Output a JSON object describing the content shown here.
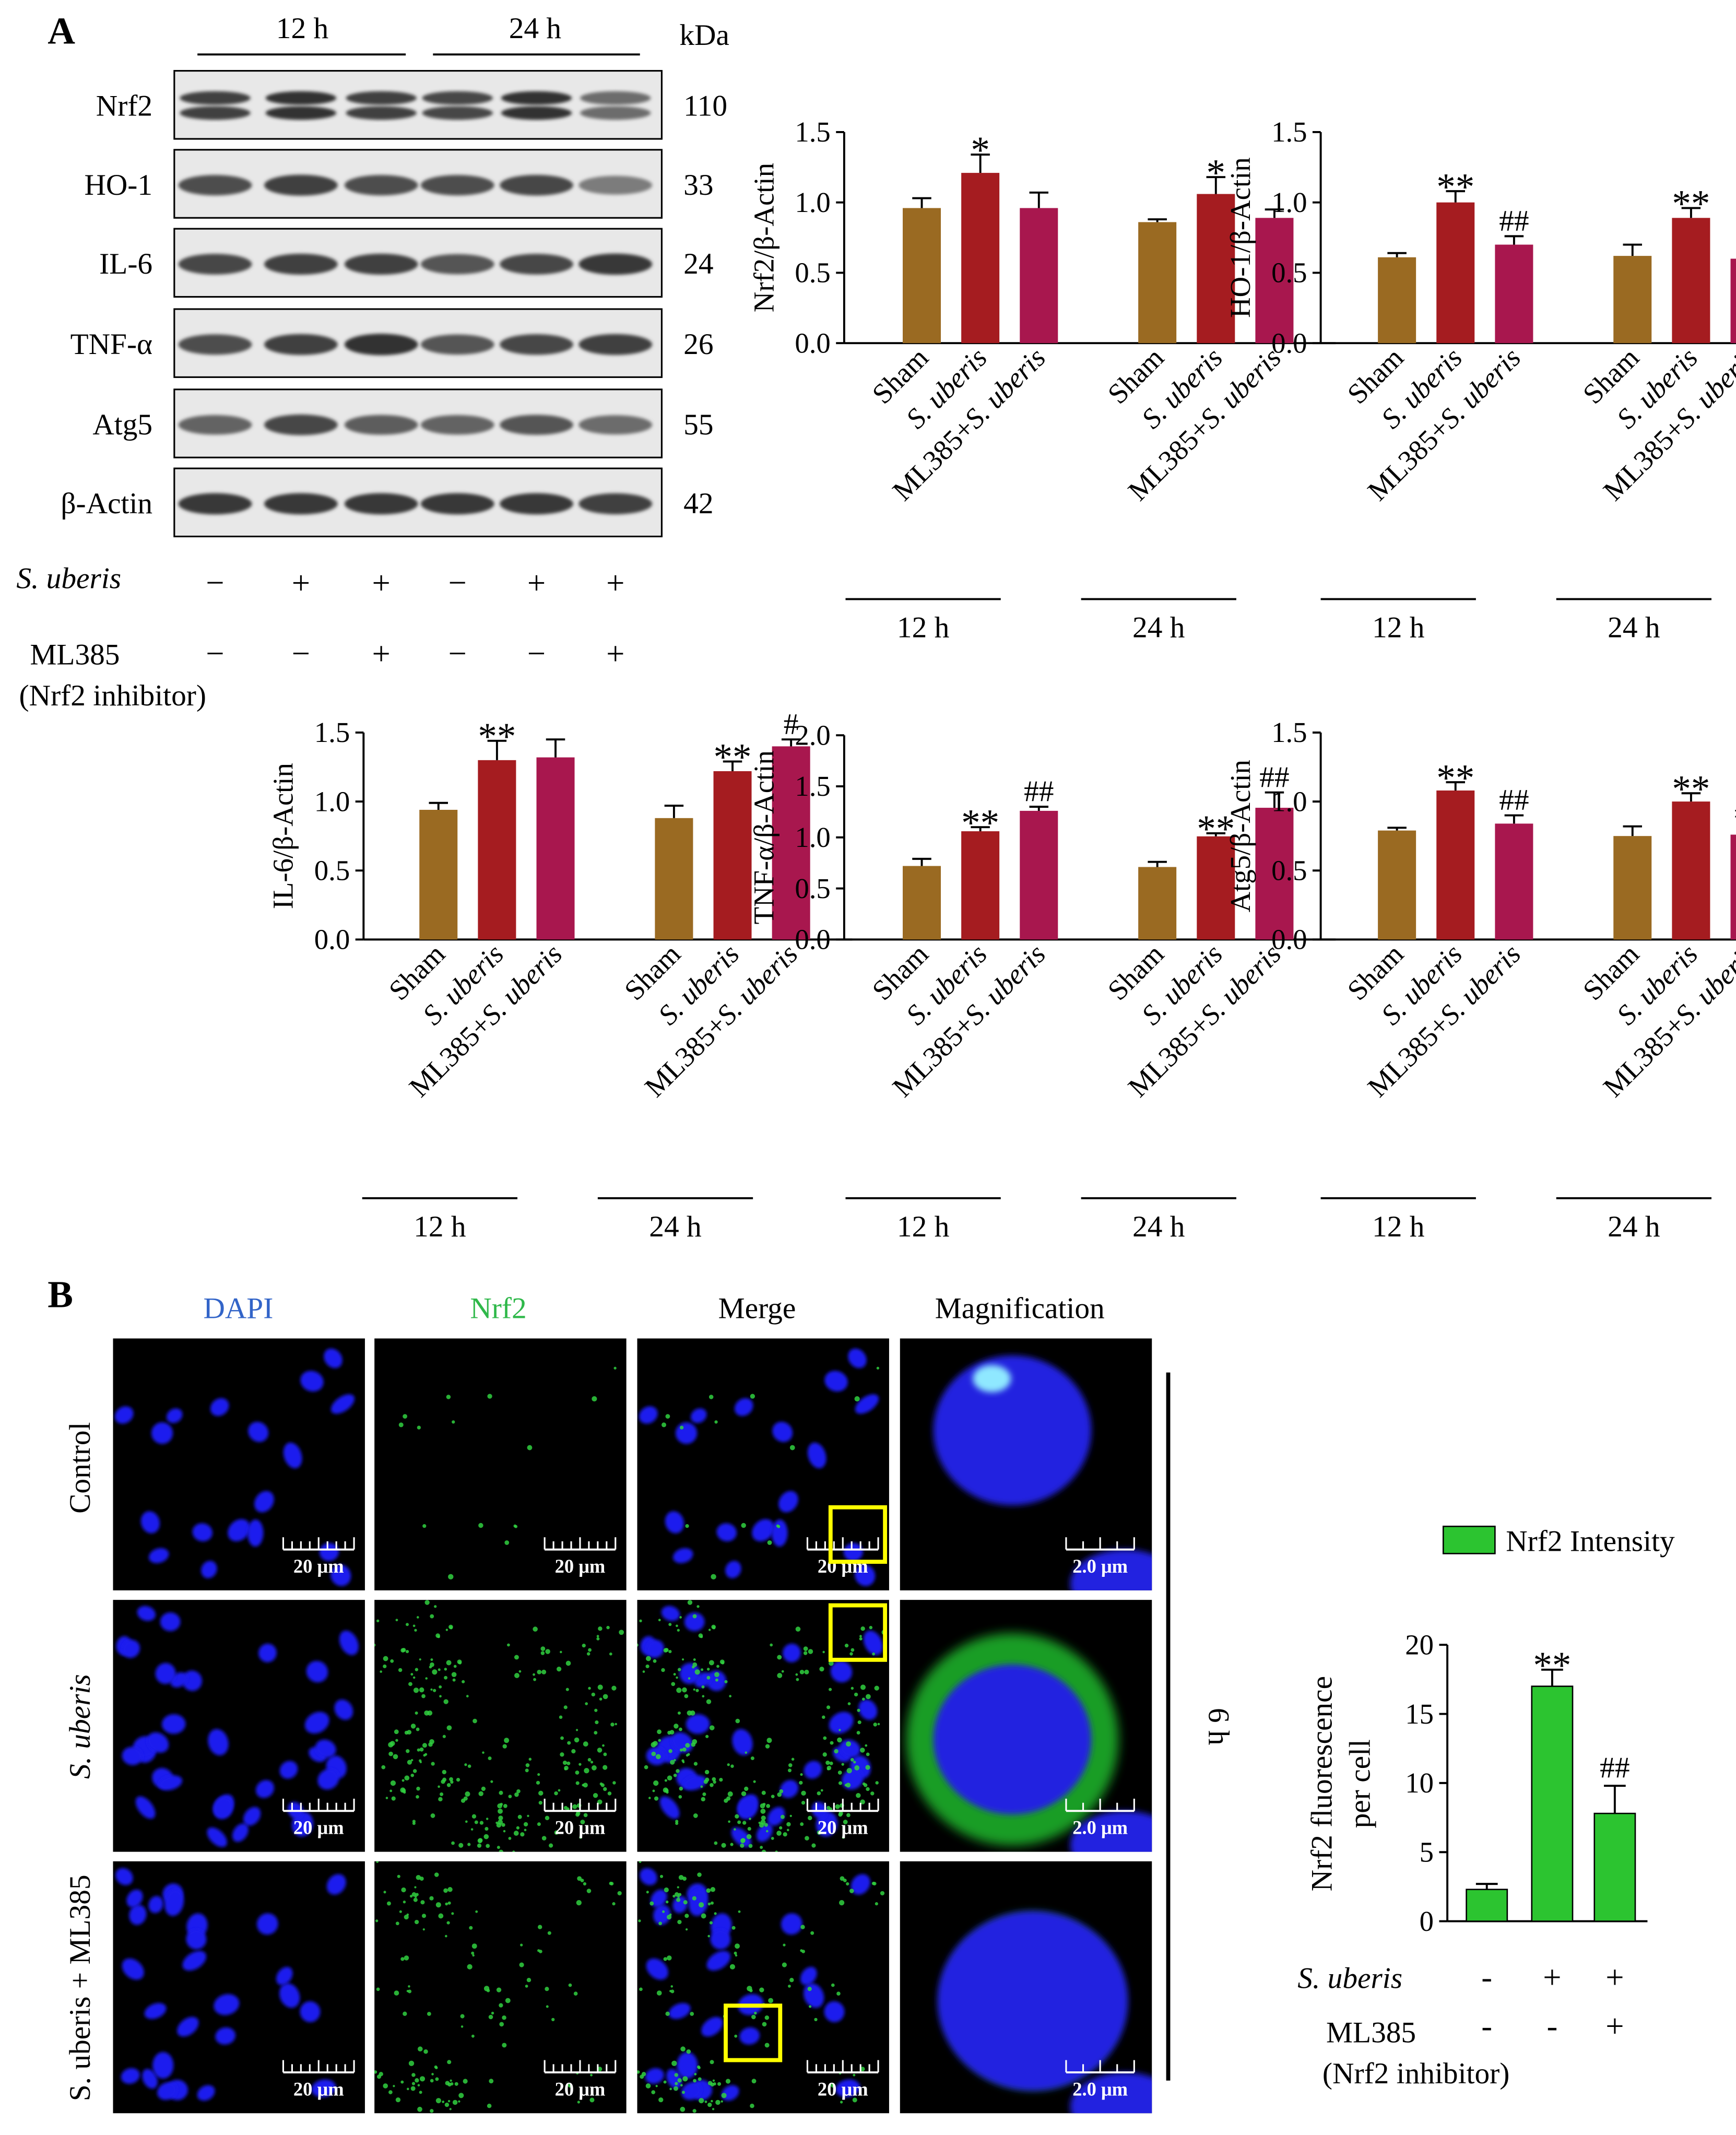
{
  "panels": {
    "A": "A",
    "B": "B"
  },
  "blot": {
    "timepoints": [
      "12 h",
      "24 h"
    ],
    "kda_label": "kDa",
    "bands": [
      {
        "name": "Nrf2",
        "kda": "110"
      },
      {
        "name": "HO-1",
        "kda": "33"
      },
      {
        "name": "IL-6",
        "kda": "24"
      },
      {
        "name": "TNF-α",
        "kda": "26"
      },
      {
        "name": "Atg5",
        "kda": "55"
      },
      {
        "name": "β-Actin",
        "kda": "42"
      }
    ],
    "row1_label": "S. uberis",
    "row1_signs": [
      "−",
      "+",
      "+",
      "−",
      "+",
      "+"
    ],
    "row2_label_a": "ML385",
    "row2_label_b": "(Nrf2 inhibitor)",
    "row2_signs": [
      "−",
      "−",
      "+",
      "−",
      "−",
      "+"
    ]
  },
  "group_labels": [
    "Sham",
    "S. uberis",
    "ML385+S. uberis"
  ],
  "group_label_parts": {
    "ml_prefix": "ML385+",
    "sub_italic": "S. uberis"
  },
  "time_labels": [
    "12 h",
    "24 h"
  ],
  "colors": {
    "sham": "#9a6a22",
    "suberis": "#a51c20",
    "ml385": "#a8174e",
    "nrf2_intensity": "#2cc430",
    "scalebar_box": "#ffff00",
    "dapi_title": "#3264c8",
    "nrf2_title": "#2fb84a"
  },
  "chart_data": [
    {
      "type": "bar",
      "ylabel": "Nrf2/β-Actin",
      "ylim": [
        0,
        1.5
      ],
      "yticks": [
        "0.0",
        "0.5",
        "1.0",
        "1.5"
      ],
      "categories": [
        "12 h",
        "24 h"
      ],
      "series": [
        {
          "name": "Sham",
          "values": [
            0.96,
            0.86
          ],
          "errors": [
            0.07,
            0.02
          ]
        },
        {
          "name": "S. uberis",
          "values": [
            1.21,
            1.06
          ],
          "errors": [
            0.13,
            0.12
          ]
        },
        {
          "name": "ML385+S. uberis",
          "values": [
            0.96,
            0.89
          ],
          "errors": [
            0.11,
            0.06
          ]
        }
      ],
      "annotations": [
        [
          "",
          "*",
          ""
        ],
        [
          "",
          "*",
          ""
        ]
      ]
    },
    {
      "type": "bar",
      "ylabel": "HO-1/β-Actin",
      "ylim": [
        0,
        1.5
      ],
      "yticks": [
        "0.0",
        "0.5",
        "1.0",
        "1.5"
      ],
      "categories": [
        "12 h",
        "24 h"
      ],
      "series": [
        {
          "name": "Sham",
          "values": [
            0.61,
            0.62
          ],
          "errors": [
            0.03,
            0.08
          ]
        },
        {
          "name": "S. uberis",
          "values": [
            1.0,
            0.89
          ],
          "errors": [
            0.08,
            0.07
          ]
        },
        {
          "name": "ML385+S. uberis",
          "values": [
            0.7,
            0.6
          ],
          "errors": [
            0.06,
            0.09
          ]
        }
      ],
      "annotations": [
        [
          "",
          "**",
          "##"
        ],
        [
          "",
          "**",
          "#"
        ]
      ]
    },
    {
      "type": "bar",
      "ylabel": "IL-6/β-Actin",
      "ylim": [
        0,
        1.5
      ],
      "yticks": [
        "0.0",
        "0.5",
        "1.0",
        "1.5"
      ],
      "categories": [
        "12 h",
        "24 h"
      ],
      "series": [
        {
          "name": "Sham",
          "values": [
            0.94,
            0.88
          ],
          "errors": [
            0.05,
            0.09
          ]
        },
        {
          "name": "S. uberis",
          "values": [
            1.3,
            1.22
          ],
          "errors": [
            0.14,
            0.07
          ]
        },
        {
          "name": "ML385+S. uberis",
          "values": [
            1.32,
            1.4
          ],
          "errors": [
            0.13,
            0.05
          ]
        }
      ],
      "annotations": [
        [
          "",
          "**",
          ""
        ],
        [
          "",
          "**",
          "#"
        ]
      ]
    },
    {
      "type": "bar",
      "ylabel": "TNF-α/β-Actin",
      "ylim": [
        0,
        2.0
      ],
      "yticks": [
        "0.0",
        "0.5",
        "1.0",
        "1.5",
        "2.0"
      ],
      "categories": [
        "12 h",
        "24 h"
      ],
      "series": [
        {
          "name": "Sham",
          "values": [
            0.72,
            0.71
          ],
          "errors": [
            0.07,
            0.05
          ]
        },
        {
          "name": "S. uberis",
          "values": [
            1.06,
            1.01
          ],
          "errors": [
            0.04,
            0.03
          ]
        },
        {
          "name": "ML385+S. uberis",
          "values": [
            1.26,
            1.29
          ],
          "errors": [
            0.04,
            0.15
          ]
        }
      ],
      "annotations": [
        [
          "",
          "**",
          "##"
        ],
        [
          "",
          "**",
          "##"
        ]
      ]
    },
    {
      "type": "bar",
      "ylabel": "Atg5/β-Actin",
      "ylim": [
        0,
        1.5
      ],
      "yticks": [
        "0.0",
        "0.5",
        "1.0",
        "1.5"
      ],
      "categories": [
        "12 h",
        "24 h"
      ],
      "series": [
        {
          "name": "Sham",
          "values": [
            0.79,
            0.75
          ],
          "errors": [
            0.02,
            0.07
          ]
        },
        {
          "name": "S. uberis",
          "values": [
            1.08,
            1.0
          ],
          "errors": [
            0.06,
            0.06
          ]
        },
        {
          "name": "ML385+S. uberis",
          "values": [
            0.84,
            0.76
          ],
          "errors": [
            0.06,
            0.04
          ]
        }
      ],
      "annotations": [
        [
          "",
          "**",
          "##"
        ],
        [
          "",
          "**",
          "##"
        ]
      ]
    },
    {
      "type": "bar",
      "legend": [
        "Nrf2 Intensity"
      ],
      "ylabel": "Nrf2 fluorescence per cell",
      "ylabel_lines": [
        "Nrf2 fluorescence",
        "per cell"
      ],
      "ylim": [
        0,
        20
      ],
      "yticks": [
        "0",
        "5",
        "10",
        "15",
        "20"
      ],
      "values": [
        2.3,
        17.0,
        7.8
      ],
      "errors": [
        0.4,
        1.2,
        2.0
      ],
      "annotations": [
        "",
        "**",
        "##"
      ],
      "row1_label": "S. uberis",
      "row1_signs": [
        "-",
        "+",
        "+"
      ],
      "row2_label_a": "ML385",
      "row2_label_b": "(Nrf2 inhibitor)",
      "row2_signs": [
        "-",
        "-",
        "+"
      ]
    }
  ],
  "micro": {
    "columns": [
      "DAPI",
      "Nrf2",
      "Merge",
      "Magnification"
    ],
    "rows": [
      "Control",
      "S. uberis",
      "S. uberis + ML385"
    ],
    "scale_main": "20 μm",
    "scale_mag": "2.0 μm",
    "time": "6 h"
  }
}
